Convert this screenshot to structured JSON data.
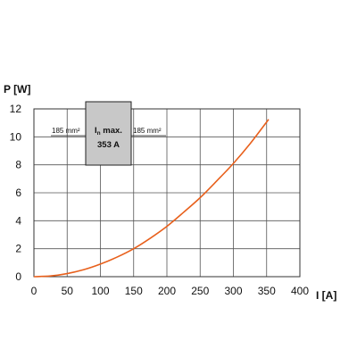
{
  "chart_data": {
    "type": "line",
    "xlabel": "I [A]",
    "ylabel": "P [W]",
    "xlim": [
      0,
      400
    ],
    "ylim": [
      0,
      12
    ],
    "x_ticks": [
      "0",
      "50",
      "100",
      "150",
      "200",
      "250",
      "300",
      "350",
      "400"
    ],
    "y_ticks": [
      "0",
      "2",
      "4",
      "6",
      "8",
      "10",
      "12"
    ],
    "grid": true,
    "series": [
      {
        "color": "#e8601c",
        "x": [
          0,
          25,
          50,
          75,
          100,
          125,
          150,
          175,
          200,
          225,
          250,
          275,
          300,
          325,
          353
        ],
        "y": [
          0,
          0.05,
          0.22,
          0.5,
          0.9,
          1.4,
          2.0,
          2.75,
          3.6,
          4.6,
          5.65,
          6.85,
          8.1,
          9.5,
          11.25
        ]
      }
    ],
    "annotation": {
      "main_label": "I",
      "main_subscript": "n",
      "main_suffix": " max.",
      "value_label": "353 A",
      "left_label": "185 mm²",
      "right_label": "185 mm²"
    }
  }
}
